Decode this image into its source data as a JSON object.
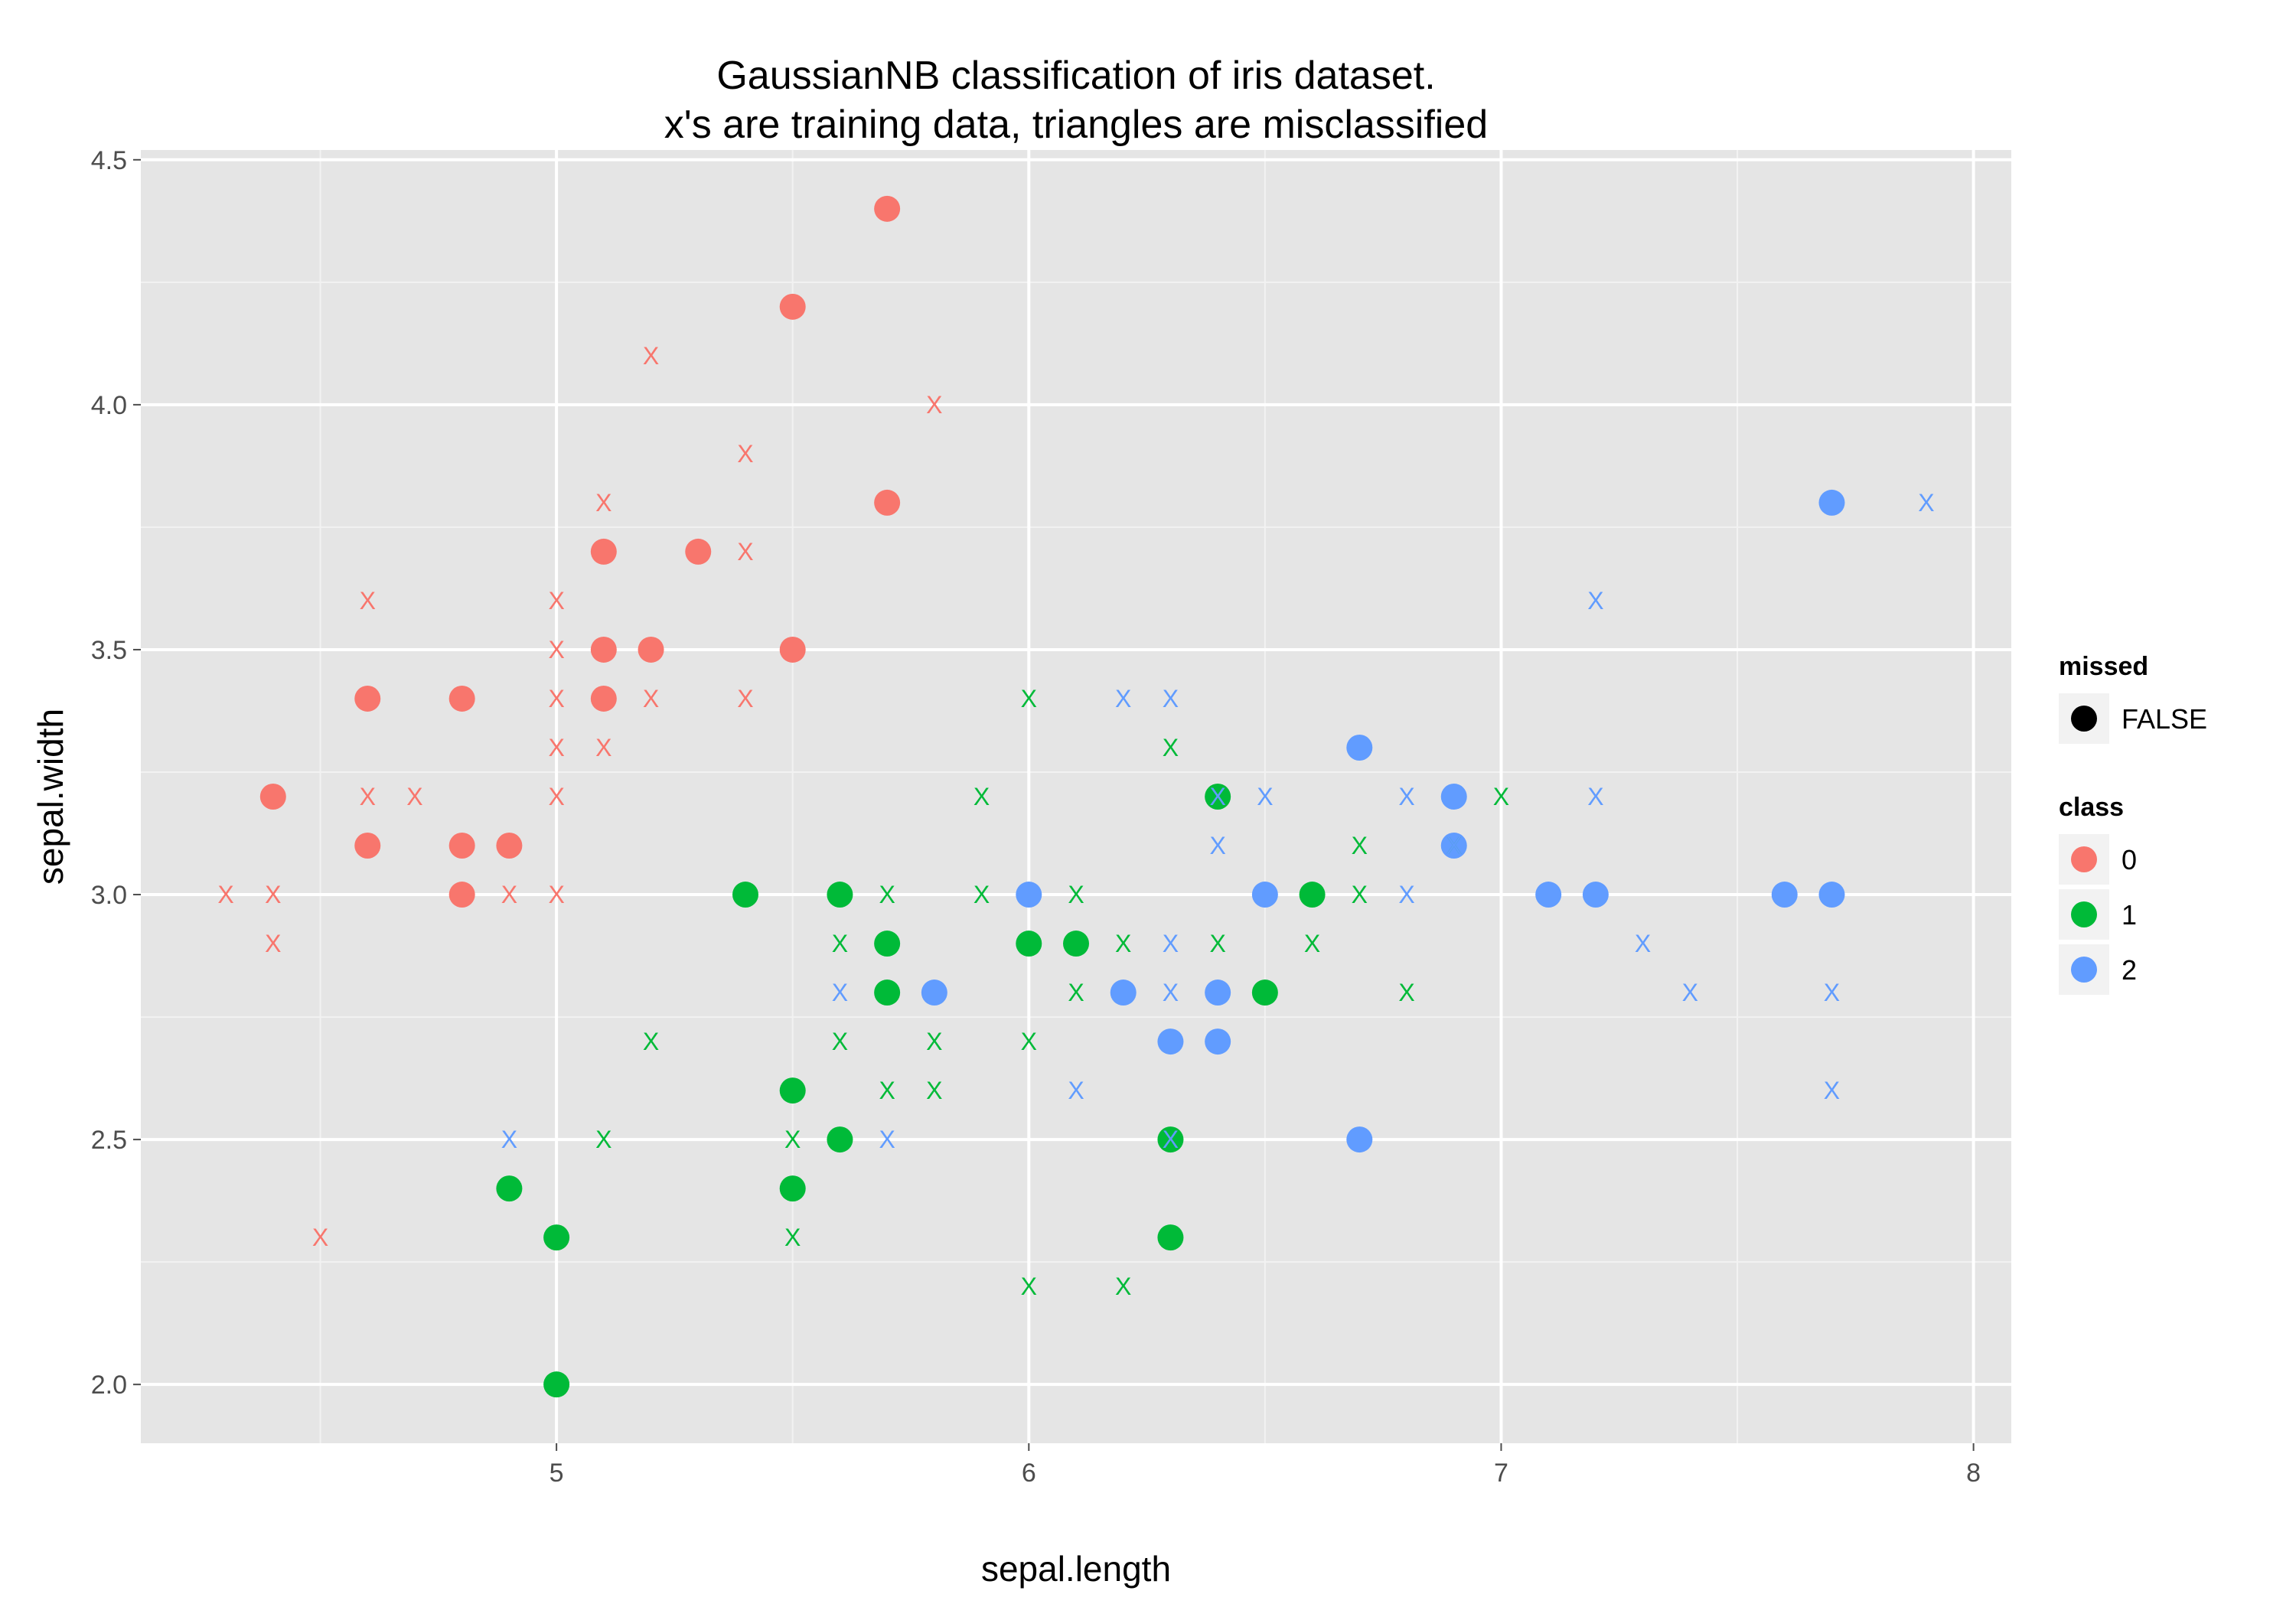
{
  "chart_data": {
    "type": "scatter",
    "title_line1": "GaussianNB classification of iris dataset.",
    "title_line2": "x's are training data, triangles are misclassified",
    "xlabel": "sepal.length",
    "ylabel": "sepal.width",
    "xlim": [
      4.12,
      8.08
    ],
    "ylim": [
      1.88,
      4.52
    ],
    "x_ticks": [
      "5",
      "6",
      "7",
      "8"
    ],
    "y_ticks": [
      "2.0",
      "2.5",
      "3.0",
      "3.5",
      "4.0",
      "4.5"
    ],
    "grid": true,
    "colors": {
      "0": "#F8766D",
      "1": "#00BA38",
      "2": "#619CFF"
    },
    "legend": {
      "position": "right",
      "missed_title": "missed",
      "missed_items": [
        "FALSE"
      ],
      "class_title": "class",
      "class_items": [
        "0",
        "1",
        "2"
      ]
    },
    "test_points": [
      {
        "x": 5.7,
        "y": 4.4,
        "class": "0"
      },
      {
        "x": 5.5,
        "y": 4.2,
        "class": "0"
      },
      {
        "x": 5.7,
        "y": 3.8,
        "class": "0"
      },
      {
        "x": 5.1,
        "y": 3.7,
        "class": "0"
      },
      {
        "x": 5.3,
        "y": 3.7,
        "class": "0"
      },
      {
        "x": 5.1,
        "y": 3.5,
        "class": "0"
      },
      {
        "x": 5.2,
        "y": 3.5,
        "class": "0"
      },
      {
        "x": 5.5,
        "y": 3.5,
        "class": "0"
      },
      {
        "x": 4.6,
        "y": 3.4,
        "class": "0"
      },
      {
        "x": 4.8,
        "y": 3.4,
        "class": "0"
      },
      {
        "x": 5.1,
        "y": 3.4,
        "class": "0"
      },
      {
        "x": 4.4,
        "y": 3.2,
        "class": "0"
      },
      {
        "x": 4.6,
        "y": 3.1,
        "class": "0"
      },
      {
        "x": 4.8,
        "y": 3.1,
        "class": "0"
      },
      {
        "x": 4.9,
        "y": 3.1,
        "class": "0"
      },
      {
        "x": 4.8,
        "y": 3.0,
        "class": "0"
      },
      {
        "x": 5.4,
        "y": 3.0,
        "class": "1"
      },
      {
        "x": 5.6,
        "y": 3.0,
        "class": "1"
      },
      {
        "x": 5.7,
        "y": 2.9,
        "class": "1"
      },
      {
        "x": 5.7,
        "y": 2.8,
        "class": "1"
      },
      {
        "x": 6.0,
        "y": 2.9,
        "class": "1"
      },
      {
        "x": 6.1,
        "y": 2.9,
        "class": "1"
      },
      {
        "x": 6.4,
        "y": 3.2,
        "class": "1"
      },
      {
        "x": 6.6,
        "y": 3.0,
        "class": "1"
      },
      {
        "x": 6.5,
        "y": 2.8,
        "class": "1"
      },
      {
        "x": 5.5,
        "y": 2.6,
        "class": "1"
      },
      {
        "x": 5.6,
        "y": 2.5,
        "class": "1"
      },
      {
        "x": 6.3,
        "y": 2.5,
        "class": "1"
      },
      {
        "x": 4.9,
        "y": 2.4,
        "class": "1"
      },
      {
        "x": 5.5,
        "y": 2.4,
        "class": "1"
      },
      {
        "x": 5.0,
        "y": 2.3,
        "class": "1"
      },
      {
        "x": 6.3,
        "y": 2.3,
        "class": "1"
      },
      {
        "x": 5.0,
        "y": 2.0,
        "class": "1"
      },
      {
        "x": 7.7,
        "y": 3.8,
        "class": "2"
      },
      {
        "x": 6.7,
        "y": 3.3,
        "class": "2"
      },
      {
        "x": 6.9,
        "y": 3.2,
        "class": "2"
      },
      {
        "x": 6.9,
        "y": 3.1,
        "class": "2"
      },
      {
        "x": 6.0,
        "y": 3.0,
        "class": "2"
      },
      {
        "x": 6.5,
        "y": 3.0,
        "class": "2"
      },
      {
        "x": 7.1,
        "y": 3.0,
        "class": "2"
      },
      {
        "x": 7.2,
        "y": 3.0,
        "class": "2"
      },
      {
        "x": 7.6,
        "y": 3.0,
        "class": "2"
      },
      {
        "x": 7.7,
        "y": 3.0,
        "class": "2"
      },
      {
        "x": 5.8,
        "y": 2.8,
        "class": "2"
      },
      {
        "x": 6.2,
        "y": 2.8,
        "class": "2"
      },
      {
        "x": 6.4,
        "y": 2.8,
        "class": "2"
      },
      {
        "x": 6.3,
        "y": 2.7,
        "class": "2"
      },
      {
        "x": 6.4,
        "y": 2.7,
        "class": "2"
      },
      {
        "x": 6.7,
        "y": 2.5,
        "class": "2"
      }
    ],
    "training_points": [
      {
        "x": 5.2,
        "y": 4.1,
        "class": "0"
      },
      {
        "x": 5.8,
        "y": 4.0,
        "class": "0"
      },
      {
        "x": 5.4,
        "y": 3.9,
        "class": "0"
      },
      {
        "x": 5.1,
        "y": 3.8,
        "class": "0"
      },
      {
        "x": 5.4,
        "y": 3.7,
        "class": "0"
      },
      {
        "x": 4.6,
        "y": 3.6,
        "class": "0"
      },
      {
        "x": 5.0,
        "y": 3.6,
        "class": "0"
      },
      {
        "x": 5.0,
        "y": 3.5,
        "class": "0"
      },
      {
        "x": 5.0,
        "y": 3.4,
        "class": "0"
      },
      {
        "x": 5.2,
        "y": 3.4,
        "class": "0"
      },
      {
        "x": 5.4,
        "y": 3.4,
        "class": "0"
      },
      {
        "x": 5.0,
        "y": 3.3,
        "class": "0"
      },
      {
        "x": 5.1,
        "y": 3.3,
        "class": "0"
      },
      {
        "x": 4.6,
        "y": 3.2,
        "class": "0"
      },
      {
        "x": 4.7,
        "y": 3.2,
        "class": "0"
      },
      {
        "x": 5.0,
        "y": 3.2,
        "class": "0"
      },
      {
        "x": 4.3,
        "y": 3.0,
        "class": "0"
      },
      {
        "x": 4.4,
        "y": 3.0,
        "class": "0"
      },
      {
        "x": 4.9,
        "y": 3.0,
        "class": "0"
      },
      {
        "x": 5.0,
        "y": 3.0,
        "class": "0"
      },
      {
        "x": 4.4,
        "y": 2.9,
        "class": "0"
      },
      {
        "x": 4.5,
        "y": 2.3,
        "class": "0"
      },
      {
        "x": 6.0,
        "y": 3.4,
        "class": "1"
      },
      {
        "x": 6.3,
        "y": 3.3,
        "class": "1"
      },
      {
        "x": 5.9,
        "y": 3.2,
        "class": "1"
      },
      {
        "x": 6.4,
        "y": 3.2,
        "class": "1"
      },
      {
        "x": 7.0,
        "y": 3.2,
        "class": "1"
      },
      {
        "x": 6.7,
        "y": 3.1,
        "class": "1"
      },
      {
        "x": 6.9,
        "y": 3.1,
        "class": "1"
      },
      {
        "x": 5.7,
        "y": 3.0,
        "class": "1"
      },
      {
        "x": 5.9,
        "y": 3.0,
        "class": "1"
      },
      {
        "x": 6.1,
        "y": 3.0,
        "class": "1"
      },
      {
        "x": 6.7,
        "y": 3.0,
        "class": "1"
      },
      {
        "x": 5.6,
        "y": 2.9,
        "class": "1"
      },
      {
        "x": 6.2,
        "y": 2.9,
        "class": "1"
      },
      {
        "x": 6.4,
        "y": 2.9,
        "class": "1"
      },
      {
        "x": 6.6,
        "y": 2.9,
        "class": "1"
      },
      {
        "x": 6.1,
        "y": 2.8,
        "class": "1"
      },
      {
        "x": 6.8,
        "y": 2.8,
        "class": "1"
      },
      {
        "x": 5.2,
        "y": 2.7,
        "class": "1"
      },
      {
        "x": 5.6,
        "y": 2.7,
        "class": "1"
      },
      {
        "x": 5.8,
        "y": 2.7,
        "class": "1"
      },
      {
        "x": 6.0,
        "y": 2.7,
        "class": "1"
      },
      {
        "x": 5.7,
        "y": 2.6,
        "class": "1"
      },
      {
        "x": 5.8,
        "y": 2.6,
        "class": "1"
      },
      {
        "x": 5.1,
        "y": 2.5,
        "class": "1"
      },
      {
        "x": 5.5,
        "y": 2.5,
        "class": "1"
      },
      {
        "x": 5.5,
        "y": 2.3,
        "class": "1"
      },
      {
        "x": 6.0,
        "y": 2.2,
        "class": "1"
      },
      {
        "x": 6.2,
        "y": 2.2,
        "class": "1"
      },
      {
        "x": 7.9,
        "y": 3.8,
        "class": "2"
      },
      {
        "x": 7.2,
        "y": 3.6,
        "class": "2"
      },
      {
        "x": 6.2,
        "y": 3.4,
        "class": "2"
      },
      {
        "x": 6.3,
        "y": 3.4,
        "class": "2"
      },
      {
        "x": 6.4,
        "y": 3.2,
        "class": "2"
      },
      {
        "x": 6.5,
        "y": 3.2,
        "class": "2"
      },
      {
        "x": 6.8,
        "y": 3.2,
        "class": "2"
      },
      {
        "x": 7.2,
        "y": 3.2,
        "class": "2"
      },
      {
        "x": 6.4,
        "y": 3.1,
        "class": "2"
      },
      {
        "x": 6.9,
        "y": 3.1,
        "class": "2"
      },
      {
        "x": 6.8,
        "y": 3.0,
        "class": "2"
      },
      {
        "x": 6.3,
        "y": 2.9,
        "class": "2"
      },
      {
        "x": 7.3,
        "y": 2.9,
        "class": "2"
      },
      {
        "x": 5.6,
        "y": 2.8,
        "class": "2"
      },
      {
        "x": 6.3,
        "y": 2.8,
        "class": "2"
      },
      {
        "x": 7.4,
        "y": 2.8,
        "class": "2"
      },
      {
        "x": 7.7,
        "y": 2.8,
        "class": "2"
      },
      {
        "x": 6.1,
        "y": 2.6,
        "class": "2"
      },
      {
        "x": 7.7,
        "y": 2.6,
        "class": "2"
      },
      {
        "x": 4.9,
        "y": 2.5,
        "class": "2"
      },
      {
        "x": 5.7,
        "y": 2.5,
        "class": "2"
      },
      {
        "x": 6.3,
        "y": 2.5,
        "class": "2"
      }
    ]
  }
}
